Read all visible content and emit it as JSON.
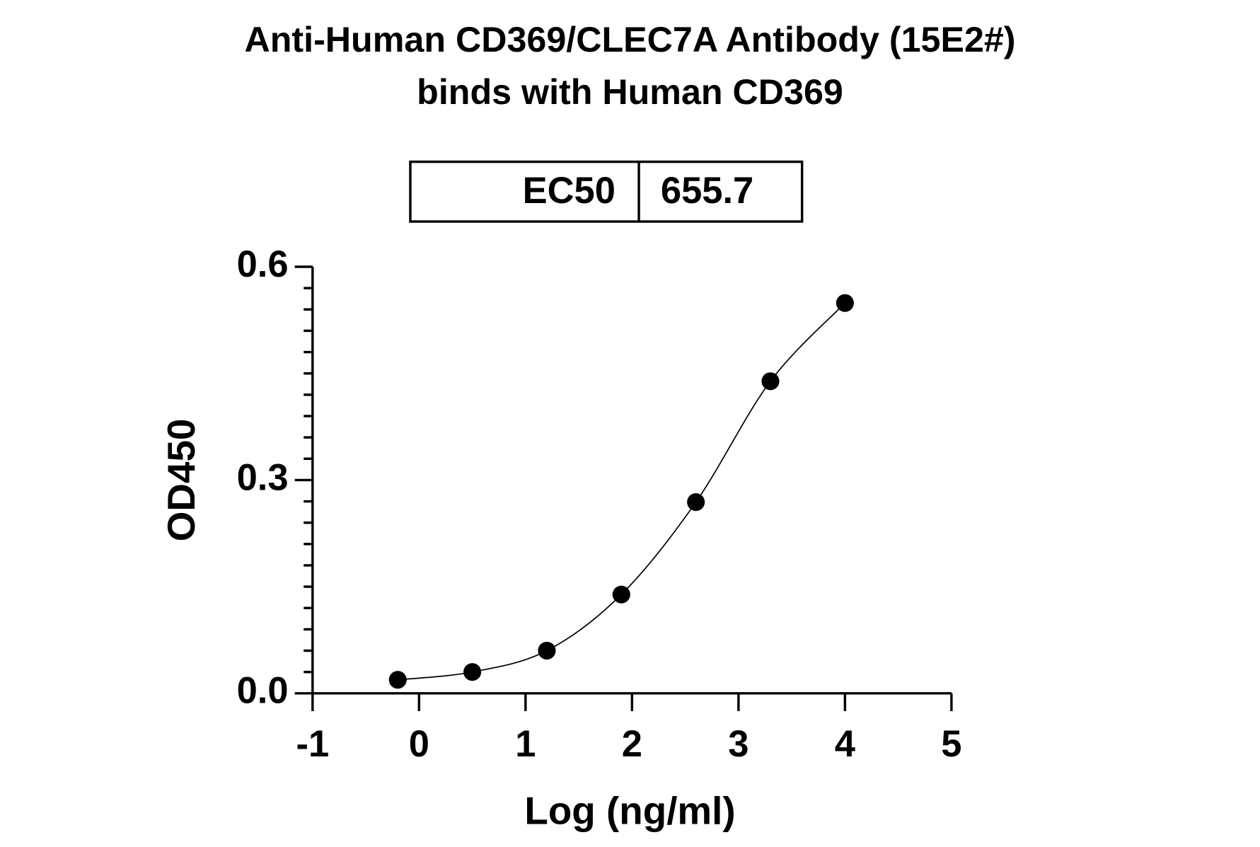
{
  "chart_data": {
    "type": "scatter",
    "title": "Anti-Human CD369/CLEC7A Antibody (15E2#)",
    "subtitle": "binds with Human CD369",
    "ec50_table": {
      "label": "EC50",
      "value": 655.7
    },
    "x_label": "Log (ng/ml)",
    "y_label": "OD450",
    "x": [
      -0.2,
      0.5,
      1.2,
      1.9,
      2.6,
      3.3,
      4.0
    ],
    "values": [
      0.019,
      0.03,
      0.06,
      0.139,
      0.269,
      0.439,
      0.549
    ],
    "color": "#000000",
    "xlim": [
      -1,
      5
    ],
    "xticks": [
      -1,
      0,
      1,
      2,
      3,
      4,
      5
    ],
    "ylim": [
      0,
      0.6
    ],
    "yticks": [
      {
        "value": 0,
        "label": "0.0"
      },
      0.3,
      0.6
    ],
    "yminorticks": [
      0.03,
      0.06,
      0.09,
      0.12,
      0.15,
      0.18,
      0.21,
      0.24,
      0.27,
      0.33,
      0.36,
      0.39,
      0.42,
      0.45,
      0.48,
      0.51,
      0.54,
      0.57
    ],
    "fit_curve": true
  }
}
